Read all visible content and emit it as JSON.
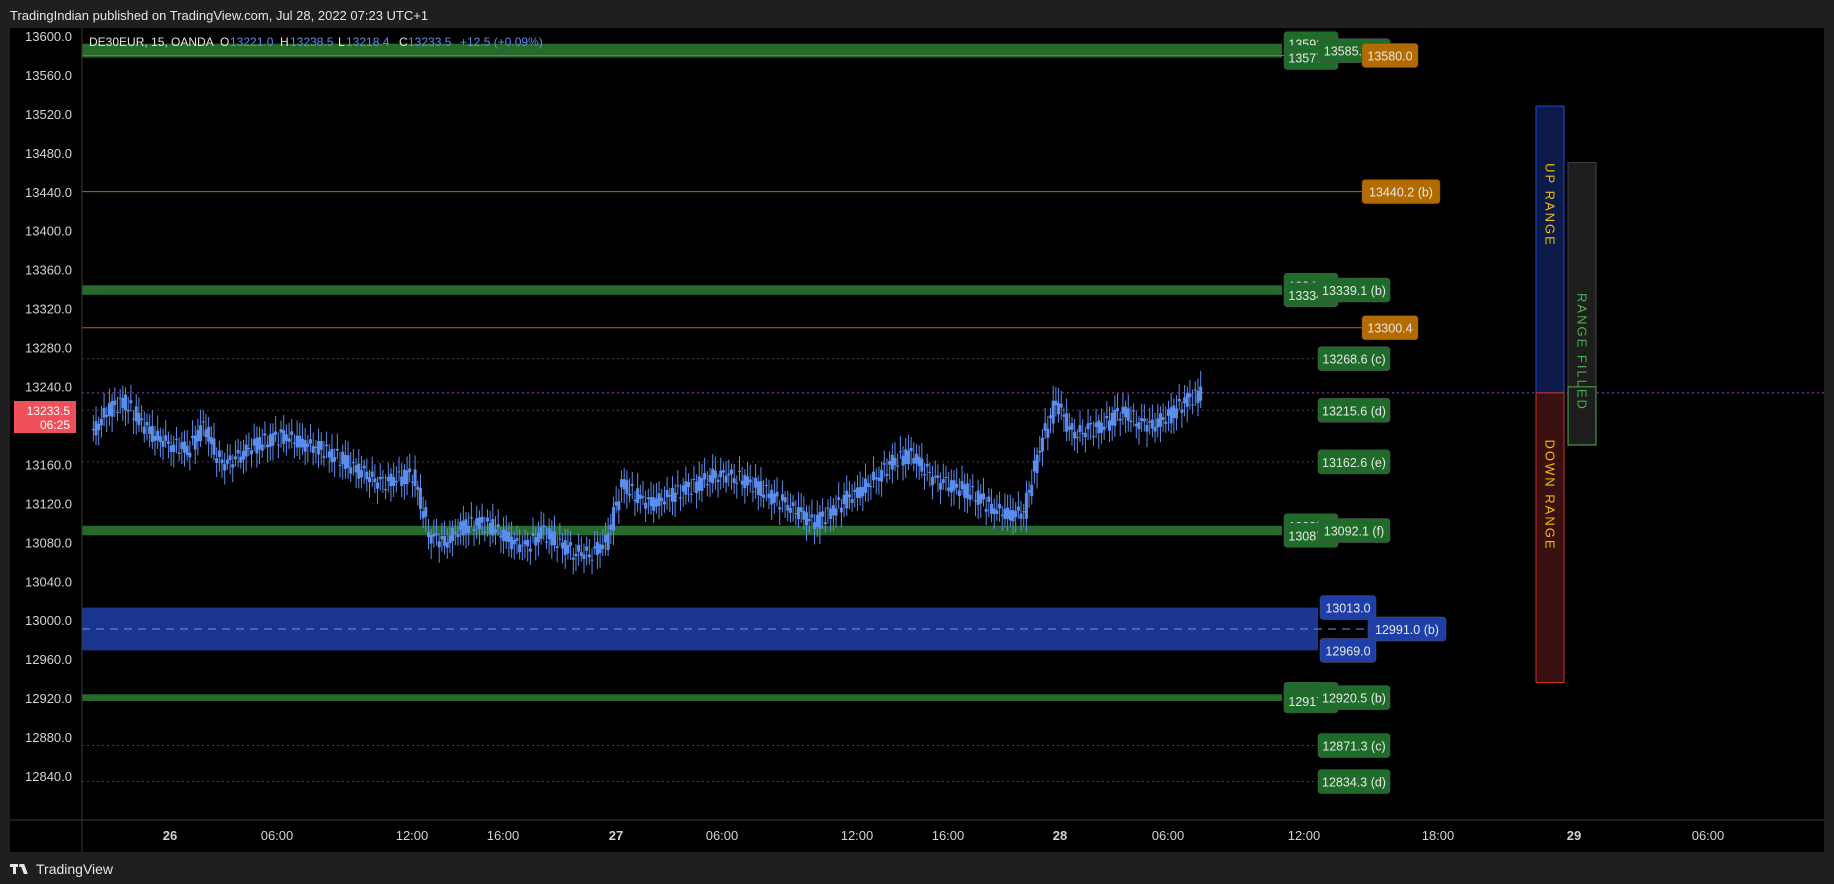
{
  "header": {
    "published": "TradingIndian published on TradingView.com, Jul 28, 2022 07:23 UTC+1"
  },
  "footer": {
    "brand": "TradingView"
  },
  "legend": {
    "symbol": "DE30EUR, 15, OANDA",
    "o_label": "O",
    "o_value": "13221.0",
    "h_label": "H",
    "h_value": "13238.5",
    "l_label": "L",
    "l_value": "13218.4",
    "c_label": "C",
    "c_value": "13233.5",
    "change": "+12.5 (+0.09%)"
  },
  "price_badge": {
    "price": "13233.5",
    "countdown": "06:25"
  },
  "chart_data": {
    "type": "candlestick",
    "symbol": "DE30EUR",
    "interval": "15",
    "exchange": "OANDA",
    "y_axis": {
      "min": 12830,
      "max": 13610,
      "ticks": [
        13600.0,
        13560.0,
        13520.0,
        13480.0,
        13440.0,
        13400.0,
        13360.0,
        13320.0,
        13280.0,
        13240.0,
        13200.0,
        13160.0,
        13120.0,
        13080.0,
        13040.0,
        13000.0,
        12960.0,
        12920.0,
        12880.0,
        12840.0
      ]
    },
    "x_axis": {
      "ticks": [
        "26",
        "06:00",
        "12:00",
        "16:00",
        "27",
        "06:00",
        "12:00",
        "16:00",
        "28",
        "06:00",
        "12:00",
        "18:00",
        "29",
        "06:00"
      ]
    },
    "current_price": 13233.5,
    "price_path": [
      [
        0,
        13190
      ],
      [
        1,
        13215
      ],
      [
        2,
        13225
      ],
      [
        3,
        13205
      ],
      [
        4,
        13188
      ],
      [
        5,
        13180
      ],
      [
        6,
        13175
      ],
      [
        7,
        13200
      ],
      [
        8,
        13160
      ],
      [
        9,
        13165
      ],
      [
        10,
        13178
      ],
      [
        11,
        13185
      ],
      [
        12,
        13190
      ],
      [
        13,
        13182
      ],
      [
        14,
        13178
      ],
      [
        15,
        13170
      ],
      [
        16,
        13160
      ],
      [
        17,
        13150
      ],
      [
        18,
        13140
      ],
      [
        19,
        13145
      ],
      [
        20,
        13150
      ],
      [
        21,
        13088
      ],
      [
        22,
        13080
      ],
      [
        23,
        13095
      ],
      [
        24,
        13100
      ],
      [
        25,
        13095
      ],
      [
        26,
        13082
      ],
      [
        27,
        13075
      ],
      [
        28,
        13090
      ],
      [
        29,
        13080
      ],
      [
        30,
        13070
      ],
      [
        31,
        13068
      ],
      [
        32,
        13080
      ],
      [
        33,
        13140
      ],
      [
        34,
        13125
      ],
      [
        35,
        13120
      ],
      [
        36,
        13128
      ],
      [
        37,
        13135
      ],
      [
        38,
        13142
      ],
      [
        39,
        13150
      ],
      [
        40,
        13148
      ],
      [
        41,
        13140
      ],
      [
        42,
        13130
      ],
      [
        43,
        13120
      ],
      [
        44,
        13110
      ],
      [
        45,
        13100
      ],
      [
        46,
        13112
      ],
      [
        47,
        13125
      ],
      [
        48,
        13135
      ],
      [
        49,
        13150
      ],
      [
        50,
        13165
      ],
      [
        51,
        13170
      ],
      [
        52,
        13150
      ],
      [
        53,
        13140
      ],
      [
        54,
        13135
      ],
      [
        55,
        13128
      ],
      [
        56,
        13115
      ],
      [
        57,
        13108
      ],
      [
        58,
        13112
      ],
      [
        59,
        13180
      ],
      [
        60,
        13225
      ],
      [
        61,
        13190
      ],
      [
        62,
        13195
      ],
      [
        63,
        13200
      ],
      [
        64,
        13215
      ],
      [
        65,
        13205
      ],
      [
        66,
        13200
      ],
      [
        67,
        13210
      ],
      [
        68,
        13225
      ],
      [
        69,
        13233.5
      ]
    ],
    "levels": [
      {
        "price": 13592.1,
        "style": "green-zone",
        "label": "13592.1"
      },
      {
        "price": 13577.9,
        "style": "green-zone",
        "label": "13577.9"
      },
      {
        "price": 13585.0,
        "style": "green-label",
        "label": "13585.0 (f)"
      },
      {
        "price": 13580.0,
        "style": "orange",
        "label": "13580.0"
      },
      {
        "price": 13440.2,
        "style": "orange",
        "label": "13440.2 (b)"
      },
      {
        "price": 13344.0,
        "style": "green-zone",
        "label": "13344.0"
      },
      {
        "price": 13334.2,
        "style": "green-zone",
        "label": "13334.2"
      },
      {
        "price": 13339.1,
        "style": "green-label",
        "label": "13339.1 (b)"
      },
      {
        "price": 13300.4,
        "style": "orange",
        "label": "13300.4"
      },
      {
        "price": 13268.6,
        "style": "dotted",
        "label": "13268.6 (c)"
      },
      {
        "price": 13215.6,
        "style": "dotted",
        "label": "13215.6 (d)"
      },
      {
        "price": 13162.6,
        "style": "dotted",
        "label": "13162.6 (e)"
      },
      {
        "price": 13097.0,
        "style": "green-zone",
        "label": "13097.0"
      },
      {
        "price": 13087.2,
        "style": "green-zone",
        "label": "13087.2"
      },
      {
        "price": 13092.1,
        "style": "green-label",
        "label": "13092.1 (f)"
      },
      {
        "price": 13013.0,
        "style": "blue-zone",
        "label": "13013.0"
      },
      {
        "price": 12991.0,
        "style": "blue-mid",
        "label": "12991.0 (b)"
      },
      {
        "price": 12969.0,
        "style": "blue-zone",
        "label": "12969.0"
      },
      {
        "price": 12923.9,
        "style": "green-zone",
        "label": "12923.9"
      },
      {
        "price": 12917.1,
        "style": "green-zone",
        "label": "12917.1"
      },
      {
        "price": 12920.5,
        "style": "green-label",
        "label": "12920.5 (b)"
      },
      {
        "price": 12871.3,
        "style": "dotted",
        "label": "12871.3 (c)"
      },
      {
        "price": 12834.3,
        "style": "dotted",
        "label": "12834.3 (d)"
      }
    ],
    "range_boxes": {
      "up": {
        "label": "UP RANGE",
        "from": 13233.5,
        "to": 13528
      },
      "down": {
        "label": "DOWN RANGE",
        "from": 12936,
        "to": 13233.5
      },
      "filled": {
        "label": "RANGE FILLED",
        "from": 13180,
        "to": 13470
      }
    },
    "colors": {
      "candle": "#5b8def",
      "green_zone": "#2e7d32",
      "green_label": "#1f6b2a",
      "orange": "#b36b00",
      "blue_zone": "#1e3fa8",
      "up_box": "#0d1b4a",
      "down_box": "#3a1010",
      "range_text": "#f0c000",
      "filled_text": "#4caf50",
      "price_badge": "#f0505a"
    }
  }
}
